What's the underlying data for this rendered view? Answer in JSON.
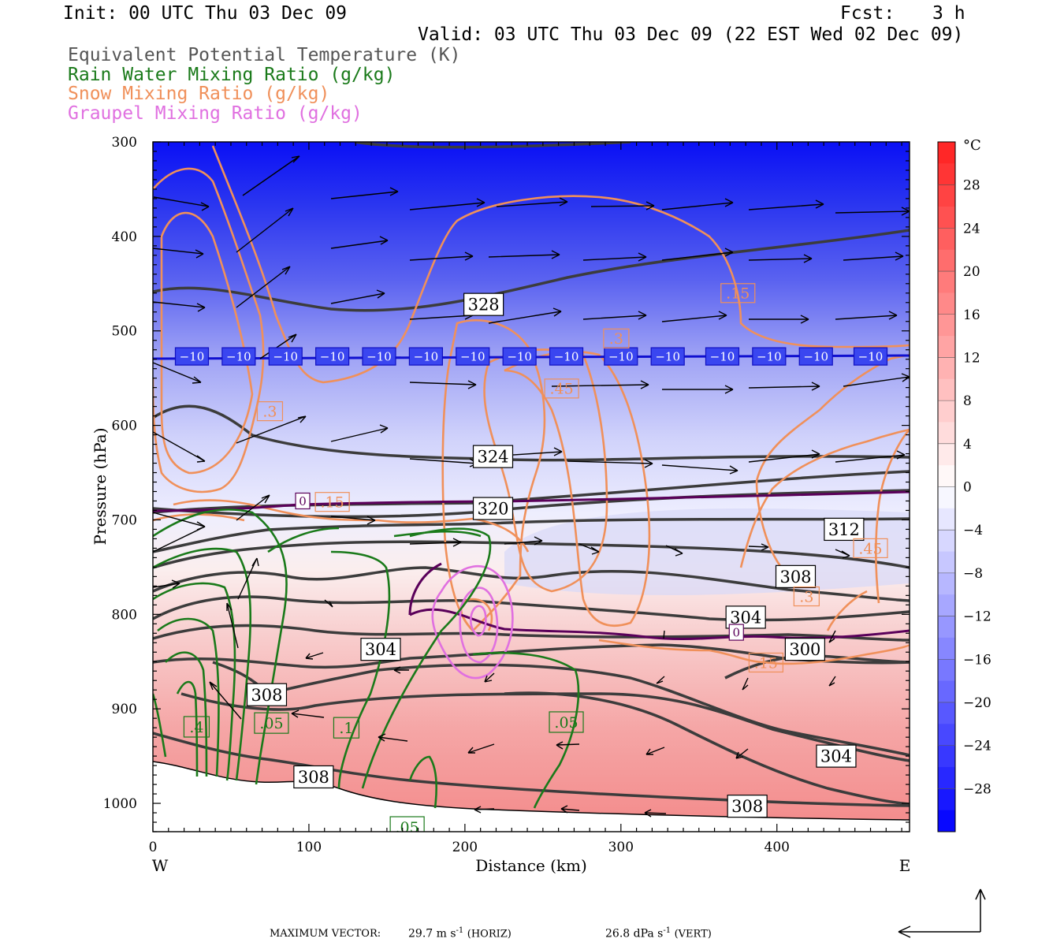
{
  "header": {
    "init": "Init: 00 UTC Thu 03 Dec 09",
    "fcst_label": "Fcst:",
    "fcst_value": "3 h",
    "valid": "Valid: 03 UTC Thu 03 Dec 09 (22 EST Wed 02 Dec 09)",
    "legend": [
      {
        "label": "Equivalent Potential Temperature (K)",
        "color": "#555555"
      },
      {
        "label": "Rain Water Mixing Ratio (g/kg)",
        "color": "#1a7a1a"
      },
      {
        "label": "Snow Mixing Ratio (g/kg)",
        "color": "#f0905a"
      },
      {
        "label": "Graupel Mixing Ratio (g/kg)",
        "color": "#e070e0"
      }
    ]
  },
  "chart_data": {
    "type": "cross-section",
    "xlabel": "Distance (km)",
    "ylabel": "Pressure (hPa)",
    "xlim": [
      0,
      485
    ],
    "ylim": [
      1030,
      300
    ],
    "x_ticks": [
      0,
      100,
      200,
      300,
      400
    ],
    "x_tick_labels": [
      "0",
      "100",
      "200",
      "300",
      "400"
    ],
    "y_ticks": [
      300,
      400,
      500,
      600,
      700,
      800,
      900,
      1000
    ],
    "y_tick_labels": [
      "300",
      "400",
      "500",
      "600",
      "700",
      "800",
      "900",
      "1000"
    ],
    "x_end_labels": {
      "left": "W",
      "right": "E"
    },
    "colorbar": {
      "unit": "°C",
      "labels": [
        "28",
        "24",
        "20",
        "16",
        "12",
        "8",
        "4",
        "0",
        "-4",
        "-8",
        "-12",
        "-16",
        "-20",
        "-24",
        "-28"
      ],
      "range": [
        -32,
        32
      ],
      "low_color": "#0000ff",
      "high_color": "#ff2020"
    },
    "isotherm_minus10": {
      "label": "-10",
      "pressure": 527,
      "label_x": [
        25,
        55,
        85,
        115,
        145,
        175,
        205,
        235,
        265,
        300,
        330,
        365,
        395,
        425,
        460
      ]
    },
    "theta_e_labels": [
      {
        "text": "328",
        "x": 212,
        "p": 472
      },
      {
        "text": "324",
        "x": 218,
        "p": 633
      },
      {
        "text": "320",
        "x": 218,
        "p": 688
      },
      {
        "text": "312",
        "x": 443,
        "p": 710
      },
      {
        "text": "308",
        "x": 412,
        "p": 760
      },
      {
        "text": "304",
        "x": 380,
        "p": 803
      },
      {
        "text": "300",
        "x": 418,
        "p": 837
      },
      {
        "text": "304",
        "x": 146,
        "p": 837
      },
      {
        "text": "308",
        "x": 73,
        "p": 885
      },
      {
        "text": "308",
        "x": 103,
        "p": 972
      },
      {
        "text": "304",
        "x": 438,
        "p": 950
      },
      {
        "text": "308",
        "x": 381,
        "p": 1003
      }
    ],
    "snow_labels": [
      {
        "text": ".15",
        "x": 375,
        "p": 460
      },
      {
        "text": ".3",
        "x": 75,
        "p": 585
      },
      {
        "text": ".45",
        "x": 262,
        "p": 561
      },
      {
        "text": ".3",
        "x": 297,
        "p": 508
      },
      {
        "text": ".15",
        "x": 115,
        "p": 681
      },
      {
        "text": ".45",
        "x": 460,
        "p": 730
      },
      {
        "text": ".3",
        "x": 419,
        "p": 781
      },
      {
        "text": ".15",
        "x": 393,
        "p": 851
      }
    ],
    "zero_labels": [
      {
        "text": "0",
        "x": 96,
        "p": 680
      },
      {
        "text": "0",
        "x": 374,
        "p": 819
      }
    ],
    "rain_labels": [
      {
        "text": ".4",
        "x": 28,
        "p": 919
      },
      {
        "text": ".05",
        "x": 76,
        "p": 915
      },
      {
        "text": ".1",
        "x": 124,
        "p": 920
      },
      {
        "text": ".05",
        "x": 265,
        "p": 914
      },
      {
        "text": ".05",
        "x": 163,
        "p": 1025
      }
    ],
    "colors": {
      "theta_e": "#3c3c3c",
      "rain": "#1a7a1a",
      "snow": "#f0905a",
      "graupel": "#e070e0",
      "zero_isotherm": "#5a005a",
      "isotherm_minus10": "#1010d0"
    }
  },
  "footer": {
    "max_vector_label": "MAXIMUM VECTOR:",
    "horiz_value": "29.7 m s",
    "horiz_exp": "-1",
    "horiz_tag": "(HORIZ)",
    "vert_value": "26.8 dPa s",
    "vert_exp": "-1",
    "vert_tag": "(VERT)"
  }
}
